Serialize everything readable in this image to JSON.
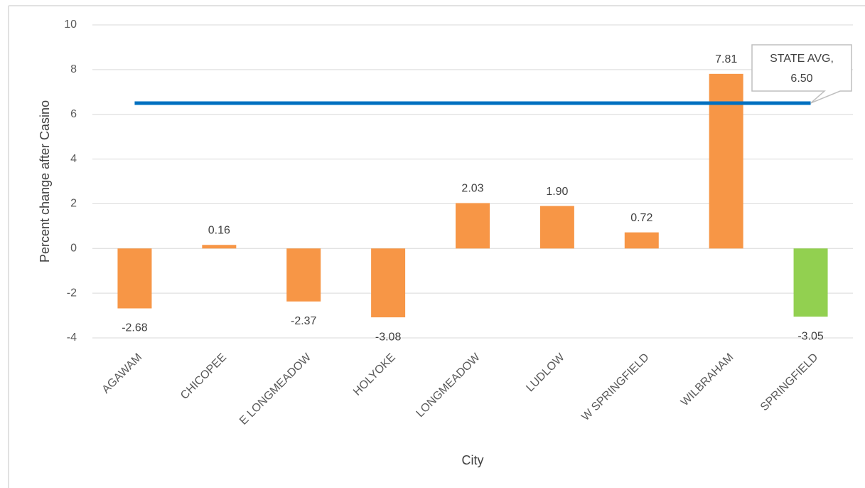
{
  "chart_data": {
    "type": "bar",
    "x_label": "City",
    "y_label": "Percent change after Casino",
    "categories": [
      "AGAWAM",
      "CHICOPEE",
      "E LONGMEADOW",
      "HOLYOKE",
      "LONGMEADOW",
      "LUDLOW",
      "W SPRINGFIELD",
      "WILBRAHAM",
      "SPRINGFIELD"
    ],
    "values": [
      -2.68,
      0.16,
      -2.37,
      -3.08,
      2.03,
      1.9,
      0.72,
      7.81,
      -3.05
    ],
    "value_labels": [
      "-2.68",
      "0.16",
      "-2.37",
      "-3.08",
      "2.03",
      "1.90",
      "0.72",
      "7.81",
      "-3.05"
    ],
    "colors": [
      "#f79646",
      "#f79646",
      "#f79646",
      "#f79646",
      "#f79646",
      "#f79646",
      "#f79646",
      "#f79646",
      "#92d050"
    ],
    "reference_line": {
      "text": "STATE AVG,",
      "value": 6.5,
      "value_label": "6.50",
      "color": "#0070c0"
    },
    "ylim": [
      -4,
      10
    ],
    "yticks": [
      -4,
      -2,
      0,
      2,
      4,
      6,
      8,
      10
    ],
    "grid": true
  }
}
